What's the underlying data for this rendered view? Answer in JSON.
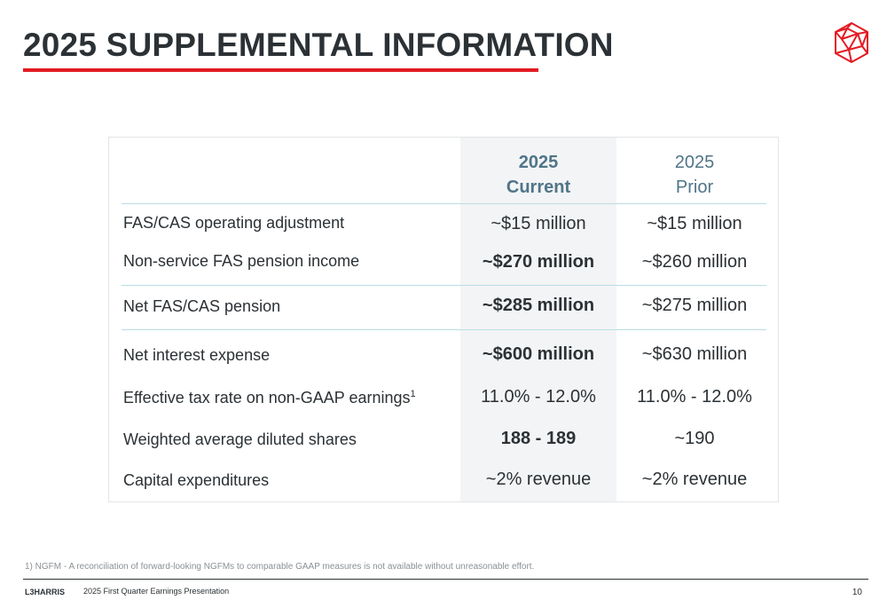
{
  "header": {
    "title": "2025 SUPPLEMENTAL INFORMATION",
    "accent_color": "#e31b23"
  },
  "logo": {
    "icon": "geodesic-sphere-icon"
  },
  "table": {
    "columns": [
      {
        "line1": "2025",
        "line2": "Current"
      },
      {
        "line1": "2025",
        "line2": "Prior"
      }
    ],
    "rows": [
      {
        "label": "FAS/CAS operating adjustment",
        "sup": "",
        "current": "~$15 million",
        "prior": "~$15 million",
        "current_bold": false
      },
      {
        "label": "Non-service FAS pension income",
        "sup": "",
        "current": "~$270 million",
        "prior": "~$260 million",
        "current_bold": true
      },
      {
        "label": "Net FAS/CAS pension",
        "sup": "",
        "current": "~$285 million",
        "prior": "~$275 million",
        "current_bold": true
      },
      {
        "label": "Net interest expense",
        "sup": "",
        "current": "~$600 million",
        "prior": "~$630 million",
        "current_bold": true
      },
      {
        "label": "Effective tax rate on non-GAAP earnings",
        "sup": "1",
        "current": "11.0% - 12.0%",
        "prior": "11.0% - 12.0%",
        "current_bold": false
      },
      {
        "label": "Weighted average diluted shares",
        "sup": "",
        "current": "188 - 189",
        "prior": "~190",
        "current_bold": true
      },
      {
        "label": "Capital expenditures",
        "sup": "",
        "current": "~2% revenue",
        "prior": "~2% revenue",
        "current_bold": false
      }
    ]
  },
  "footnote": "1) NGFM - A reconciliation of forward-looking NGFMs to comparable GAAP measures is not available without unreasonable effort.",
  "footer": {
    "brand": "L3HARRIS",
    "presentation": "2025 First Quarter Earnings Presentation",
    "page": "10"
  }
}
